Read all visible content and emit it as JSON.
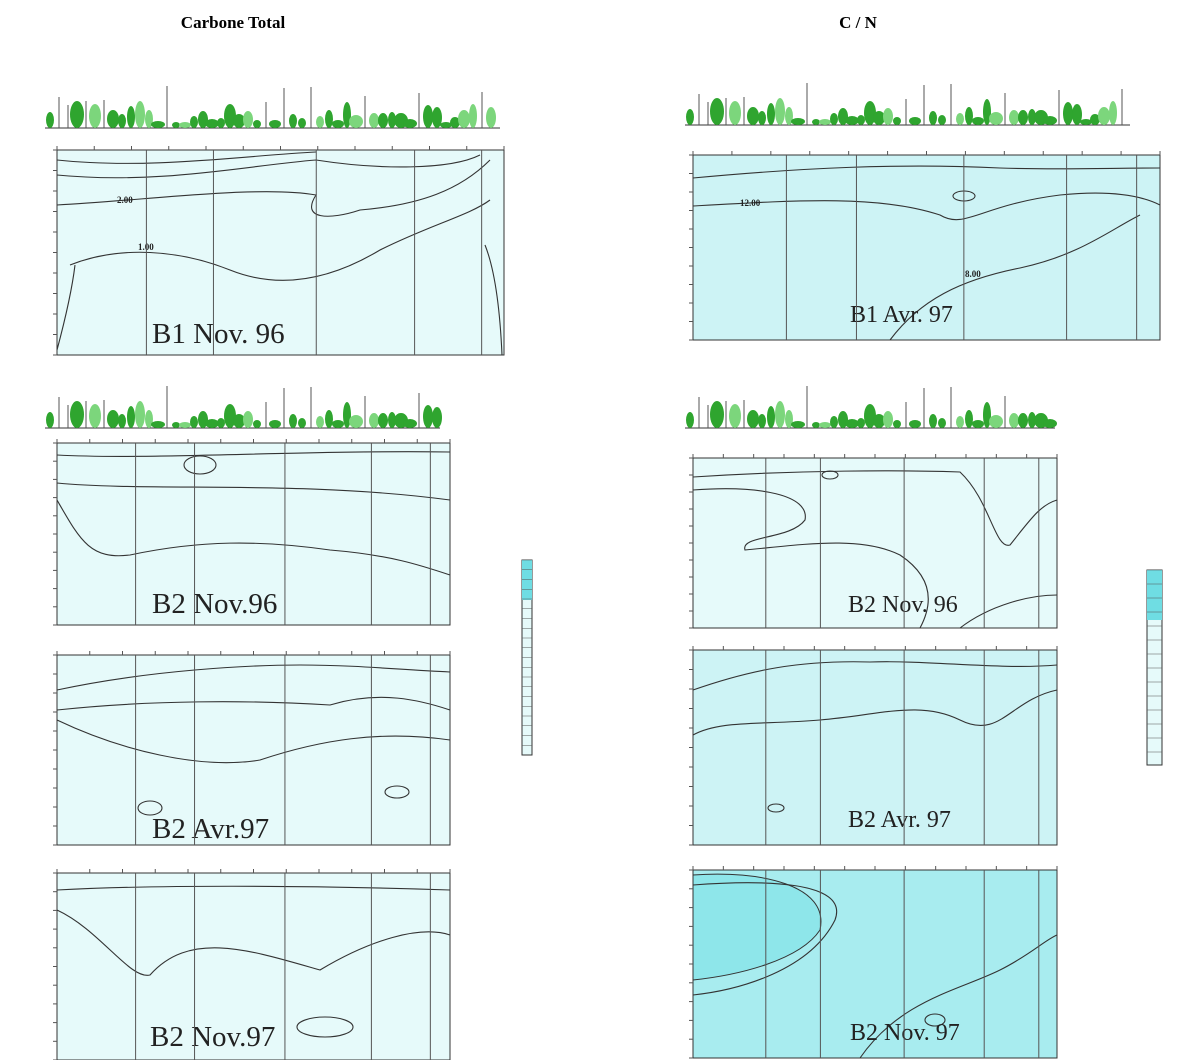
{
  "columns": [
    {
      "title": "Carbone Total",
      "panels": [
        {
          "label": "B1 Nov. 96",
          "contour_labels": [
            "2.00",
            "1.00"
          ]
        },
        {
          "label": "B2 Nov.96"
        },
        {
          "label": "B2 Avr.97"
        },
        {
          "label": "B2 Nov.97"
        }
      ]
    },
    {
      "title": "C / N",
      "panels": [
        {
          "label": "B1 Avr. 97",
          "contour_labels": [
            "12.00",
            "8.00"
          ]
        },
        {
          "label": "B2 Nov. 96"
        },
        {
          "label": "B2 Avr. 97"
        },
        {
          "label": "B2 Nov. 97"
        }
      ]
    }
  ]
}
